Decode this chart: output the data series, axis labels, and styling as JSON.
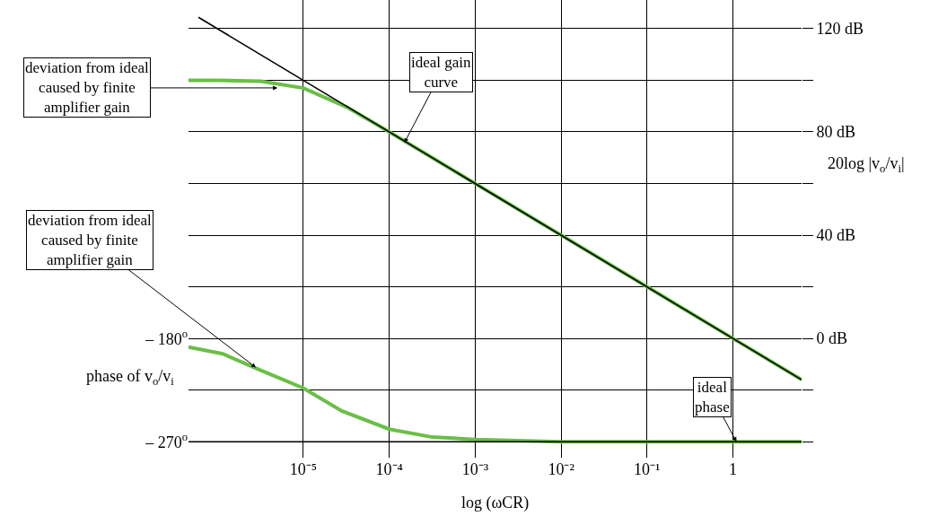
{
  "chart_data": {
    "type": "line",
    "xlabel": "log (ωCR)",
    "ylabel": "phase of v$_{o}$/v$_{i}$",
    "y2label": "20log |v$_{o}$/v$_{i}$|",
    "log": "x",
    "grid": true,
    "xlim": [
      4.6e-07,
      6.3
    ],
    "xticks": [
      {
        "value": 1e-05,
        "label": "10⁻⁵"
      },
      {
        "value": 0.0001,
        "label": "10⁻⁴"
      },
      {
        "value": 0.001,
        "label": "10⁻³"
      },
      {
        "value": 0.01,
        "label": "10⁻²"
      },
      {
        "value": 0.1,
        "label": "10⁻¹"
      },
      1
    ],
    "ylim": [
      -284,
      117
    ],
    "yticks": [
      {
        "value": -180,
        "label": "– 180$^{o}$"
      },
      {
        "value": -270,
        "label": "– 270$^{o}$"
      }
    ],
    "y2lim": [
      -46.2,
      131.1
    ],
    "y2ticks": [
      {
        "value": -40,
        "label": null
      },
      {
        "value": -20,
        "label": null
      },
      {
        "value": 0,
        "label": "0 dB"
      },
      {
        "value": 20,
        "label": null
      },
      {
        "value": 40,
        "label": "40 dB"
      },
      {
        "value": 60,
        "label": null
      },
      {
        "value": 80,
        "label": "80 dB"
      },
      {
        "value": 100,
        "label": null
      },
      {
        "value": 120,
        "label": "120 dB"
      }
    ],
    "series": [
      {
        "axis": "y2",
        "color": "#6abf45",
        "x": [
          4.6e-07,
          1e-06,
          3.2e-06,
          1e-05,
          3.2e-05,
          0.0001,
          0.001,
          0.01,
          0.1,
          1,
          6.3
        ],
        "values": [
          100,
          100,
          99.6,
          97,
          89.6,
          80,
          60,
          40,
          20,
          0,
          -16
        ]
      },
      {
        "axis": "y2",
        "color": "#000000",
        "x": [
          6e-07,
          6.3
        ],
        "values": [
          124.4,
          -16
        ]
      },
      {
        "color": "#6abf45",
        "x": [
          4.6e-07,
          1.15e-06,
          3.1e-06,
          1e-05,
          2.8e-05,
          0.0001,
          0.00032,
          0.001,
          0.01,
          0.1,
          1,
          6.3
        ],
        "values": [
          -187,
          -193,
          -207,
          -223,
          -243,
          -259,
          -266,
          -268,
          -270,
          -270,
          -270,
          -270
        ]
      },
      {
        "color": "#000000",
        "x": [
          4.6e-07,
          6.3
        ],
        "values": [
          -270,
          -270
        ]
      }
    ],
    "annotations": [
      {
        "text": "ideal gain\ncurve",
        "x": 0.00015,
        "y": -8
      },
      {
        "text": "deviation from ideal\ncaused by finite\namplifier gain",
        "x": 5e-06,
        "y": 40
      },
      {
        "text": "deviation from ideal\ncaused by finite\namplifier gain",
        "x": 2.8e-06,
        "y": -205
      },
      {
        "text": "ideal\nphase",
        "x": 1.1,
        "y": -270
      }
    ]
  }
}
